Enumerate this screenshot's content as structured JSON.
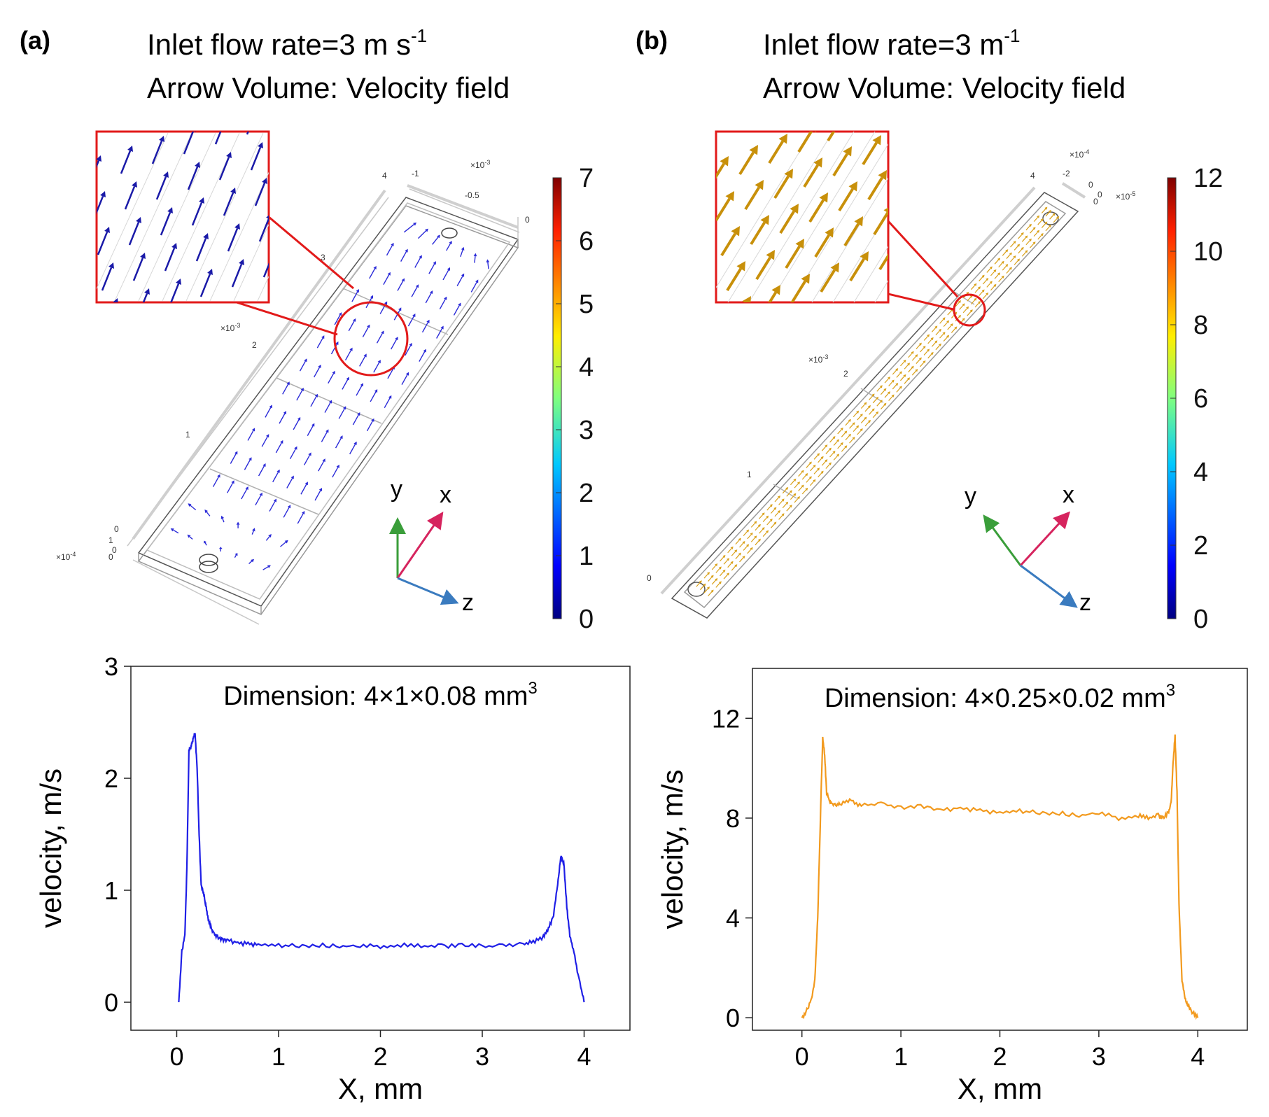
{
  "panels": [
    {
      "label": "(a)",
      "title_line1": "Inlet flow rate=3 m s",
      "title_line1_sup": "-1",
      "title_line2": "Arrow Volume:  Velocity field",
      "arrow_color": "#2a2ad8",
      "zoom_arrow_color": "#1a1aa8",
      "colorbar_ticks": [
        "0",
        "1",
        "2",
        "3",
        "4",
        "5",
        "6",
        "7"
      ],
      "geometry_ticks": {
        "y_ticks": [
          "0",
          "1",
          "2",
          "3",
          "4"
        ],
        "y_multiplier": "×10",
        "y_multiplier_exp": "-3",
        "z_ticks": [
          "-1",
          "-0.5",
          "0"
        ],
        "z_multiplier": "×10",
        "z_multiplier_exp": "-3",
        "x_ticks": [
          "0",
          "1",
          "0"
        ],
        "x_multiplier": "×10",
        "x_multiplier_exp": "-4"
      },
      "axes": {
        "x": "x",
        "y": "y",
        "z": "z"
      }
    },
    {
      "label": "(b)",
      "title_line1": "Inlet flow rate=3 m",
      "title_line1_sup": "-1",
      "title_line2": "Arrow Volume:  Velocity field",
      "arrow_color": "#d9a11a",
      "zoom_arrow_color": "#c8900a",
      "colorbar_ticks": [
        "0",
        "2",
        "4",
        "6",
        "8",
        "10",
        "12"
      ],
      "geometry_ticks": {
        "y_ticks": [
          "0",
          "1",
          "2",
          "4"
        ],
        "y_multiplier": "×10",
        "y_multiplier_exp": "-3",
        "z_ticks": [
          "-2",
          "0"
        ],
        "z_multiplier": "×10",
        "z_multiplier_exp": "-4",
        "x_ticks": [
          "0",
          "0"
        ],
        "x_multiplier": "×10",
        "x_multiplier_exp": "-5"
      },
      "axes": {
        "x": "x",
        "y": "y",
        "z": "z"
      }
    }
  ],
  "chart_data": [
    {
      "type": "line",
      "annotation": "Dimension: 4×1×0.08 mm",
      "annotation_sup": "3",
      "xlabel": "X, mm",
      "ylabel": "velocity, m/s",
      "xlim": [
        -0.45,
        4.45
      ],
      "ylim": [
        -0.25,
        3.0
      ],
      "xticks": [
        0,
        1,
        2,
        3,
        4
      ],
      "yticks": [
        0,
        1,
        2,
        3
      ],
      "color": "#1f1fe6",
      "series": [
        {
          "name": "velocity",
          "x": [
            0.02,
            0.05,
            0.08,
            0.1,
            0.12,
            0.14,
            0.16,
            0.18,
            0.2,
            0.22,
            0.24,
            0.26,
            0.28,
            0.3,
            0.33,
            0.36,
            0.4,
            0.45,
            0.5,
            0.6,
            0.7,
            0.8,
            1.0,
            1.2,
            1.4,
            1.6,
            1.8,
            2.0,
            2.2,
            2.4,
            2.6,
            2.8,
            3.0,
            3.2,
            3.4,
            3.5,
            3.6,
            3.65,
            3.7,
            3.74,
            3.77,
            3.8,
            3.83,
            3.86,
            3.9,
            3.95,
            4.0
          ],
          "y": [
            0.0,
            0.45,
            0.6,
            1.2,
            2.25,
            2.28,
            2.35,
            2.4,
            2.1,
            1.5,
            1.05,
            0.98,
            0.9,
            0.78,
            0.68,
            0.62,
            0.58,
            0.56,
            0.55,
            0.53,
            0.52,
            0.51,
            0.51,
            0.5,
            0.51,
            0.5,
            0.5,
            0.5,
            0.51,
            0.5,
            0.5,
            0.51,
            0.5,
            0.51,
            0.52,
            0.54,
            0.58,
            0.65,
            0.78,
            1.05,
            1.3,
            1.25,
            0.85,
            0.6,
            0.45,
            0.2,
            0.0
          ]
        }
      ]
    },
    {
      "type": "line",
      "annotation": "Dimension: 4×0.25×0.02 mm",
      "annotation_sup": "3",
      "xlabel": "X, mm",
      "ylabel": "velocity, m/s",
      "xlim": [
        -0.5,
        4.5
      ],
      "ylim": [
        -0.5,
        14.0
      ],
      "xticks": [
        0,
        1,
        2,
        3,
        4
      ],
      "yticks": [
        0,
        4,
        8,
        12
      ],
      "color": "#f29a1e",
      "series": [
        {
          "name": "velocity",
          "x": [
            0.0,
            0.05,
            0.1,
            0.13,
            0.16,
            0.19,
            0.21,
            0.23,
            0.25,
            0.28,
            0.3,
            0.35,
            0.4,
            0.5,
            0.6,
            0.8,
            1.0,
            1.2,
            1.4,
            1.6,
            1.8,
            2.0,
            2.2,
            2.4,
            2.6,
            2.8,
            3.0,
            3.2,
            3.4,
            3.5,
            3.6,
            3.65,
            3.7,
            3.73,
            3.75,
            3.77,
            3.79,
            3.81,
            3.84,
            3.87,
            3.9,
            3.95,
            4.0
          ],
          "y": [
            0.0,
            0.3,
            0.8,
            1.5,
            4.0,
            8.5,
            11.2,
            10.5,
            9.0,
            8.7,
            8.6,
            8.5,
            8.6,
            8.7,
            8.5,
            8.6,
            8.4,
            8.5,
            8.3,
            8.4,
            8.3,
            8.2,
            8.3,
            8.2,
            8.2,
            8.1,
            8.2,
            8.0,
            8.1,
            8.0,
            8.1,
            8.0,
            8.2,
            8.6,
            10.2,
            11.3,
            9.0,
            4.5,
            1.5,
            0.8,
            0.5,
            0.2,
            0.0
          ]
        }
      ]
    }
  ]
}
